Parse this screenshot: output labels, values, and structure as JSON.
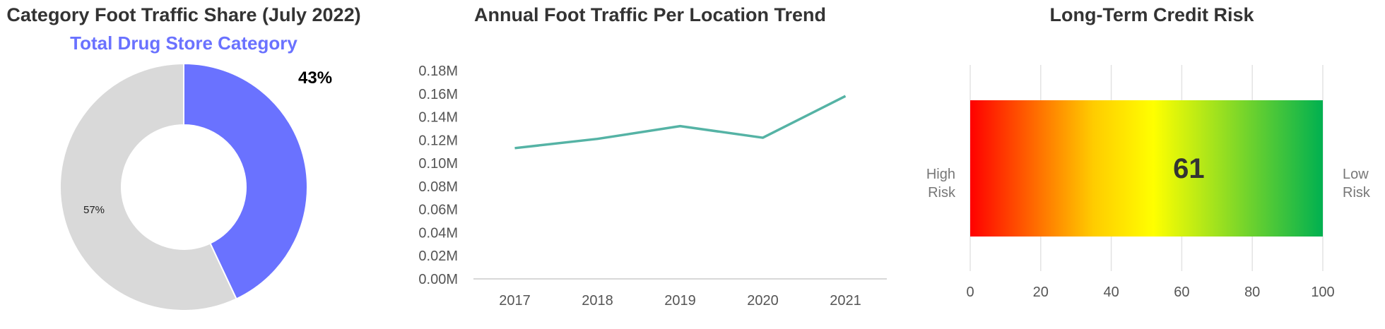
{
  "chart_data": [
    {
      "type": "pie",
      "title": "Category Foot Traffic Share (July 2022)",
      "subtitle": "Total Drug Store Category",
      "slices": [
        {
          "label": "43%",
          "value": 43,
          "color": "#6a72ff"
        },
        {
          "label": "57%",
          "value": 57,
          "color": "#d9d9d9"
        }
      ]
    },
    {
      "type": "line",
      "title": "Annual Foot Traffic Per Location Trend",
      "xlabel": "",
      "ylabel": "",
      "categories": [
        "2017",
        "2018",
        "2019",
        "2020",
        "2021"
      ],
      "series": [
        {
          "values": [
            0.113,
            0.121,
            0.132,
            0.122,
            0.158
          ],
          "color": "#55b3a5"
        }
      ],
      "ylim": [
        0,
        0.18
      ],
      "yticks": [
        "0.00M",
        "0.02M",
        "0.04M",
        "0.06M",
        "0.08M",
        "0.10M",
        "0.12M",
        "0.14M",
        "0.16M",
        "0.18M"
      ],
      "grid": false
    },
    {
      "type": "bar",
      "title": "Long-Term Credit Risk",
      "value": "61",
      "left_label": [
        "High",
        "Risk"
      ],
      "right_label": [
        "Low",
        "Risk"
      ],
      "xlim": [
        0,
        100
      ],
      "xticks": [
        "0",
        "20",
        "40",
        "60",
        "80",
        "100"
      ],
      "gradient": [
        "#ff0000",
        "#ffcc00",
        "#ffff00",
        "#00b050"
      ],
      "grid": true
    }
  ]
}
